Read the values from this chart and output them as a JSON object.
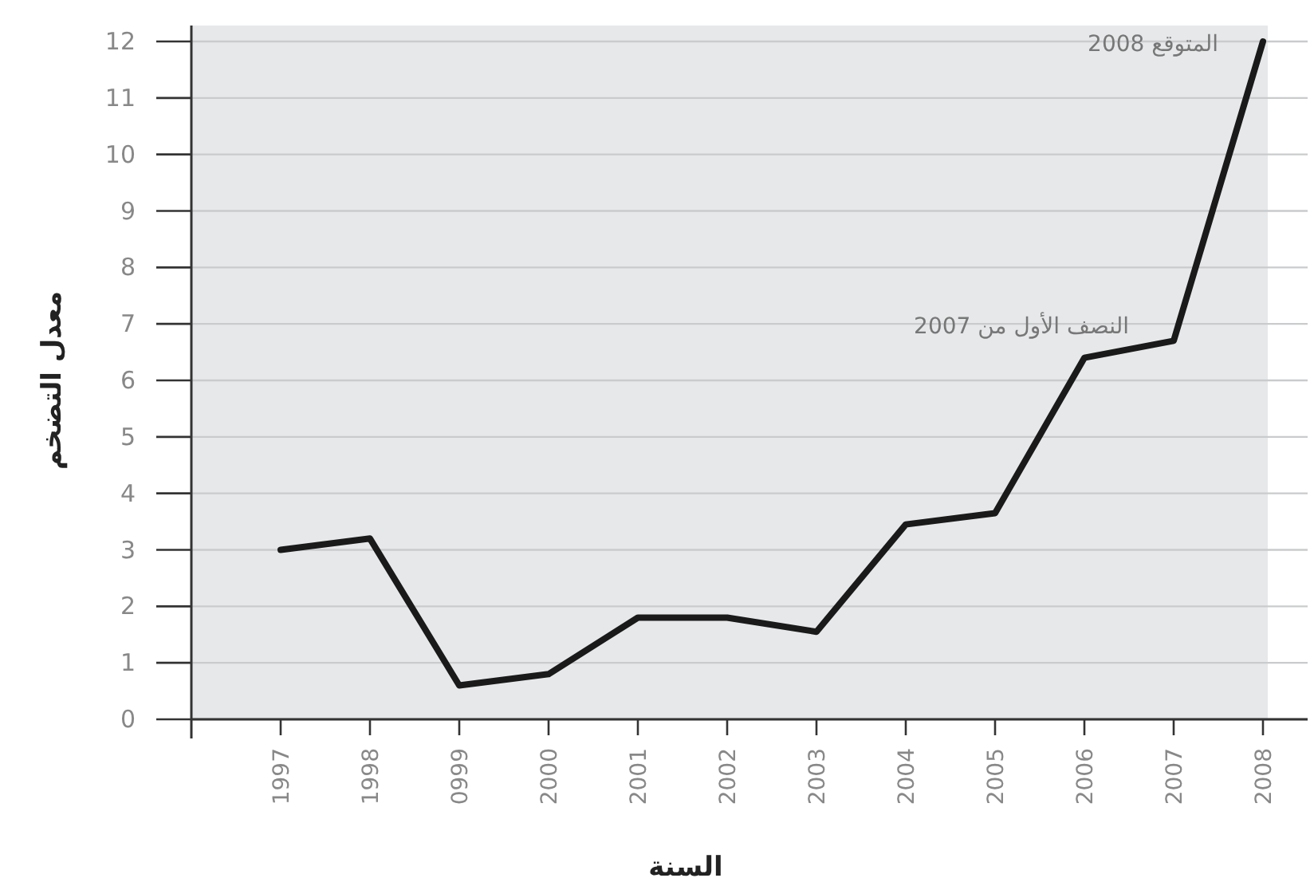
{
  "chart_data": {
    "type": "line",
    "categories": [
      "1997",
      "1998",
      "0999",
      "2000",
      "2001",
      "2002",
      "2003",
      "2004",
      "2005",
      "2006",
      "2007",
      "2008"
    ],
    "series": [
      {
        "color": "#1a1a1a",
        "values": [
          3.0,
          3.2,
          0.6,
          0.8,
          1.8,
          1.8,
          1.55,
          3.45,
          3.65,
          6.4,
          6.7,
          12.0
        ]
      }
    ],
    "xlabel": "السنة",
    "ylabel": "معدل التضخم",
    "ylim": [
      0,
      12
    ],
    "yticks": [
      0,
      1,
      2,
      3,
      4,
      5,
      6,
      7,
      8,
      9,
      10,
      11,
      12
    ],
    "grid": "y",
    "annotations": [
      {
        "text": "المتوقع 2008",
        "x": "2008",
        "y": 12
      },
      {
        "text": "النصف الأول من 2007",
        "x": "2007",
        "y": 7
      }
    ]
  }
}
